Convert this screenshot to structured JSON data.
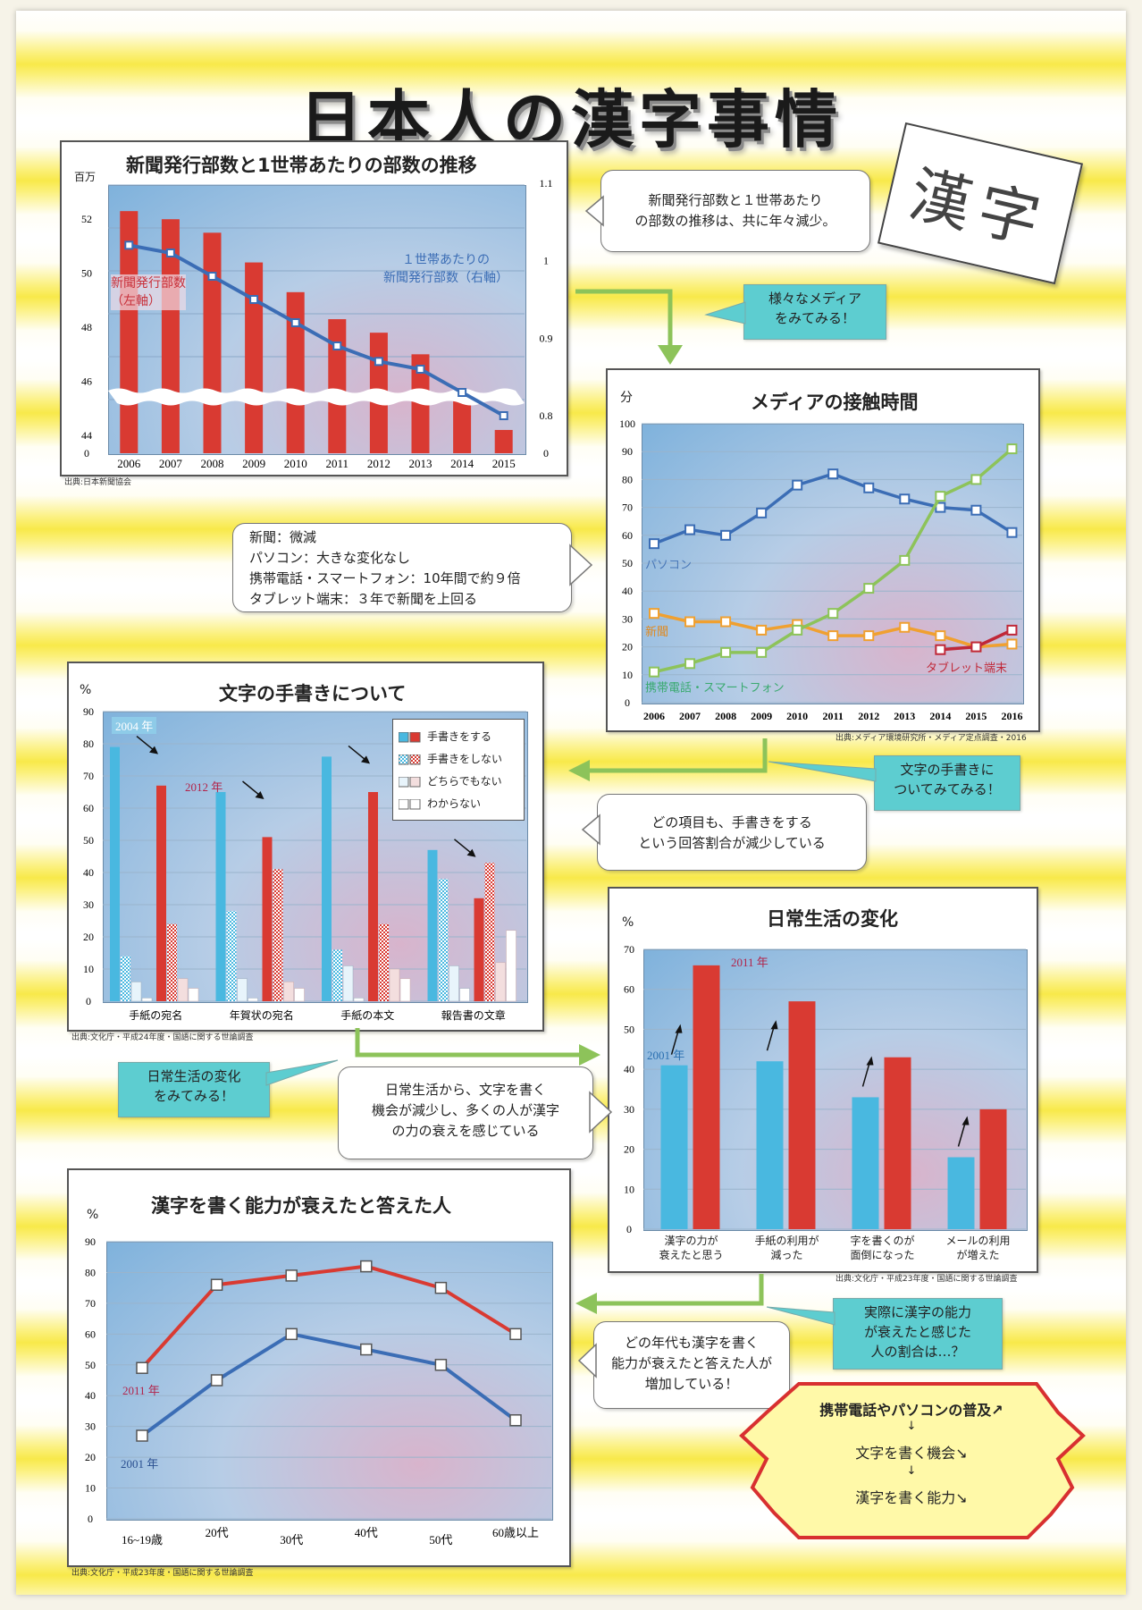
{
  "title": "日本人の漢字事情",
  "kanji_card": "漢字",
  "chart1": {
    "title": "新聞発行部数と1世帯あたりの部数の推移",
    "ylabel_left": "百万",
    "left_ticks": [
      "52",
      "50",
      "48",
      "46",
      "44",
      "0"
    ],
    "right_ticks": [
      "1.1",
      "1",
      "0.9",
      "0.8",
      "0"
    ],
    "label_bar": "新聞発行部数（左軸）",
    "label_bar_1": "新聞発行部数",
    "label_bar_2": "（左軸）",
    "label_line_1": "１世帯あたりの",
    "label_line_2": "新聞発行部数（右軸）",
    "source": "出典:日本新聞協会"
  },
  "chart2": {
    "title": "メディアの接触時間",
    "ylabel": "分",
    "source": "出典:メディア環境研究所・メディア定点調査・2016",
    "series_labels": [
      "パソコン",
      "新聞",
      "携帯電話・スマートフォン",
      "タブレット端末"
    ]
  },
  "chart3": {
    "title": "文字の手書きについて",
    "ylabel": "%",
    "year_a": "2004 年",
    "year_b": "2012 年",
    "legend": [
      "手書きをする",
      "手書きをしない",
      "どちらでもない",
      "わからない"
    ],
    "source": "出典:文化庁・平成24年度・国語に関する世論調査"
  },
  "chart4": {
    "title": "日常生活の変化",
    "ylabel": "%",
    "year_a": "2001 年",
    "year_b": "2011 年",
    "cat_lines": [
      [
        "漢字の力が",
        "衰えたと思う"
      ],
      [
        "手紙の利用が",
        "減った"
      ],
      [
        "字を書くのが",
        "面倒になった"
      ],
      [
        "メールの利用",
        "が増えた"
      ]
    ],
    "source": "出典:文化庁・平成23年度・国語に関する世論調査"
  },
  "chart5": {
    "title": "漢字を書く能力が衰えたと答えた人",
    "ylabel": "%",
    "label_2011": "2011 年",
    "label_2001": "2001 年",
    "source": "出典:文化庁・平成23年度・国語に関する世論調査"
  },
  "bubbles": {
    "b1_l1": "新聞発行部数と１世帯あたり",
    "b1_l2": "の部数の推移は、共に年々減少。",
    "b2_l1": "新聞：微減",
    "b2_l2": "パソコン：大きな変化なし",
    "b2_l3": "携帯電話・スマートフォン：10年間で約９倍",
    "b2_l4": "タブレット端末：３年で新聞を上回る",
    "b3_l1": "どの項目も、手書きをする",
    "b3_l2": "という回答割合が減少している",
    "b4_l1": "日常生活から、文字を書く",
    "b4_l2": "機会が減少し、多くの人が漢字",
    "b4_l3": "の力の衰えを感じている",
    "b5_l1": "どの年代も漢字を書く",
    "b5_l2": "能力が衰えたと答えた人が",
    "b5_l3": "増加している！"
  },
  "teal_boxes": {
    "t1_l1": "様々なメディア",
    "t1_l2": "をみてみる！",
    "t2_l1": "文字の手書きに",
    "t2_l2": "ついてみてみる！",
    "t3_l1": "日常生活の変化",
    "t3_l2": "をみてみる！",
    "t4_l1": "実際に漢字の能力",
    "t4_l2": "が衰えたと感じた",
    "t4_l3": "人の割合は…？"
  },
  "summary": {
    "line1": "携帯電話やパソコンの普及↗",
    "arrow": "↓",
    "line2": "文字を書く機会↘",
    "line3": "漢字を書く能力↘"
  },
  "colors": {
    "red": "#d93a32",
    "blue": "#3b6db5",
    "cyan": "#49b8e0",
    "green": "#8dc35a",
    "orange": "#f0a030",
    "teal": "#5dcdd0"
  },
  "chart_data": [
    {
      "type": "bar",
      "title": "新聞発行部数と1世帯あたりの部数の推移",
      "categories": [
        "2006",
        "2007",
        "2008",
        "2009",
        "2010",
        "2011",
        "2012",
        "2013",
        "2014",
        "2015"
      ],
      "series": [
        {
          "name": "新聞発行部数（左軸）",
          "values": [
            52.3,
            52.0,
            51.5,
            50.4,
            49.3,
            48.3,
            47.8,
            47.0,
            45.4,
            44.2
          ]
        },
        {
          "name": "１世帯あたりの新聞発行部数（右軸）",
          "type": "line",
          "values": [
            1.02,
            1.01,
            0.98,
            0.95,
            0.92,
            0.89,
            0.87,
            0.86,
            0.83,
            0.8
          ]
        }
      ],
      "ylim_left": [
        44,
        53
      ],
      "ylim_right": [
        0.8,
        1.1
      ]
    },
    {
      "type": "line",
      "title": "メディアの接触時間",
      "x": [
        "2006",
        "2007",
        "2008",
        "2009",
        "2010",
        "2011",
        "2012",
        "2013",
        "2014",
        "2015",
        "2016"
      ],
      "series": [
        {
          "name": "パソコン",
          "values": [
            57,
            62,
            60,
            68,
            78,
            82,
            77,
            73,
            70,
            69,
            61
          ]
        },
        {
          "name": "新聞",
          "values": [
            32,
            29,
            29,
            26,
            28,
            24,
            24,
            27,
            24,
            20,
            21
          ]
        },
        {
          "name": "携帯電話・スマートフォン",
          "values": [
            11,
            14,
            18,
            18,
            26,
            32,
            41,
            51,
            74,
            80,
            91
          ]
        },
        {
          "name": "タブレット端末",
          "values": [
            null,
            null,
            null,
            null,
            null,
            null,
            null,
            null,
            19,
            20,
            26
          ]
        }
      ],
      "ylim": [
        0,
        100
      ]
    },
    {
      "type": "bar",
      "title": "文字の手書きについて",
      "categories": [
        "手紙の宛名",
        "年賀状の宛名",
        "手紙の本文",
        "報告書の文章"
      ],
      "series": [
        {
          "name": "手書きをする 2004",
          "values": [
            79,
            65,
            76,
            47
          ]
        },
        {
          "name": "手書きをしない 2004",
          "values": [
            14,
            28,
            16,
            38
          ]
        },
        {
          "name": "どちらでもない 2004",
          "values": [
            6,
            7,
            11,
            11
          ]
        },
        {
          "name": "わからない 2004",
          "values": [
            1,
            1,
            1,
            4
          ]
        },
        {
          "name": "手書きをする 2012",
          "values": [
            67,
            51,
            65,
            32
          ]
        },
        {
          "name": "手書きをしない 2012",
          "values": [
            24,
            41,
            24,
            43
          ]
        },
        {
          "name": "どちらでもない 2012",
          "values": [
            7,
            6,
            10,
            12
          ]
        },
        {
          "name": "わからない 2012",
          "values": [
            4,
            4,
            7,
            22
          ]
        }
      ],
      "ylim": [
        0,
        90
      ]
    },
    {
      "type": "bar",
      "title": "日常生活の変化",
      "categories": [
        "漢字の力が衰えたと思う",
        "手紙の利用が減った",
        "字を書くのが面倒になった",
        "メールの利用が増えた"
      ],
      "series": [
        {
          "name": "2001 年",
          "values": [
            41,
            42,
            33,
            18
          ]
        },
        {
          "name": "2011 年",
          "values": [
            66,
            57,
            43,
            30
          ]
        }
      ],
      "ylim": [
        0,
        70
      ]
    },
    {
      "type": "line",
      "title": "漢字を書く能力が衰えたと答えた人",
      "x": [
        "16~19歳",
        "20代",
        "30代",
        "40代",
        "50代",
        "60歳以上"
      ],
      "series": [
        {
          "name": "2011 年",
          "values": [
            49,
            76,
            79,
            82,
            75,
            60
          ]
        },
        {
          "name": "2001 年",
          "values": [
            27,
            45,
            60,
            55,
            50,
            32
          ]
        }
      ],
      "ylim": [
        0,
        90
      ]
    }
  ]
}
